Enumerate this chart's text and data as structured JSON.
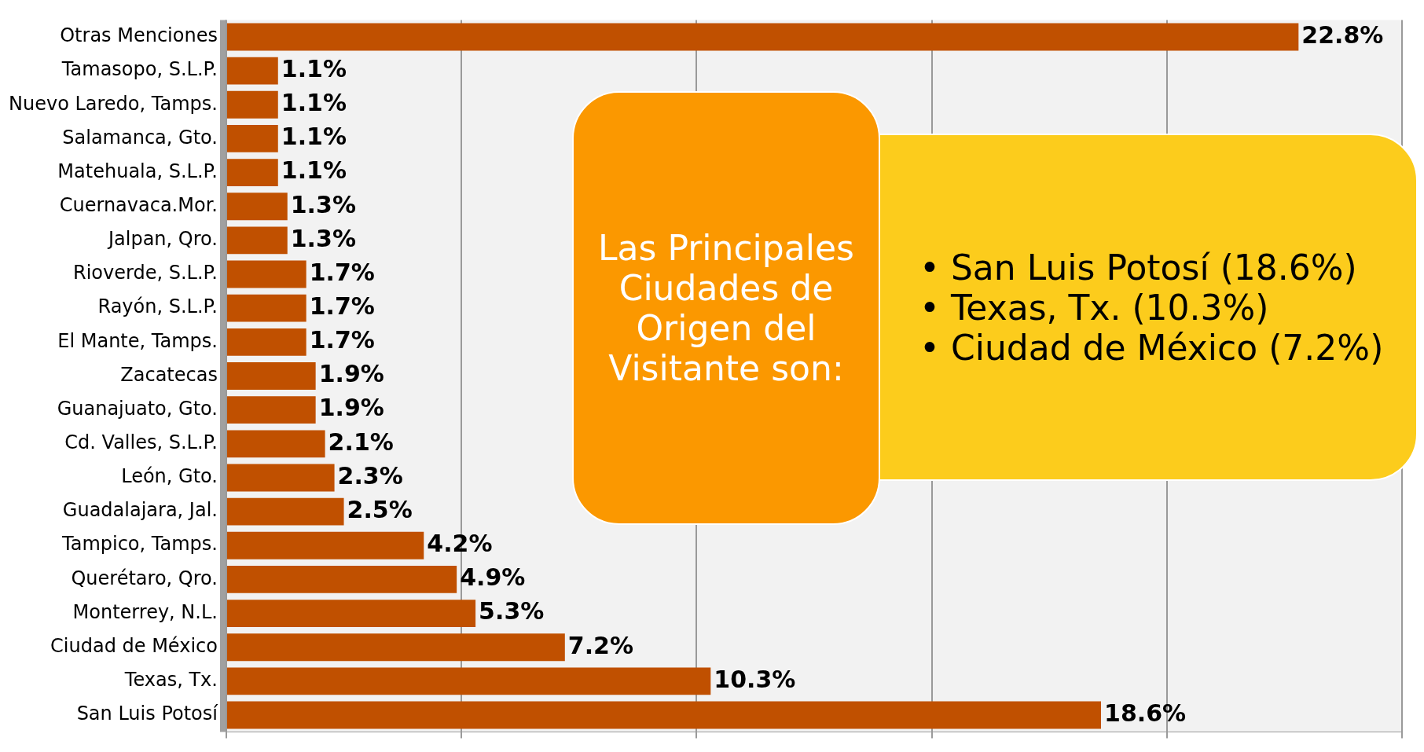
{
  "chart_data": {
    "type": "bar",
    "orientation": "horizontal",
    "categories": [
      "Otras Menciones",
      "Tamasopo, S.L.P.",
      "Nuevo Laredo, Tamps.",
      "Salamanca, Gto.",
      "Matehuala, S.L.P.",
      "Cuernavaca.Mor.",
      "Jalpan, Qro.",
      "Rioverde, S.L.P.",
      "Rayón, S.L.P.",
      "El Mante, Tamps.",
      "Zacatecas",
      "Guanajuato, Gto.",
      "Cd. Valles, S.L.P.",
      "León, Gto.",
      "Guadalajara, Jal.",
      "Tampico, Tamps.",
      "Querétaro, Qro.",
      "Monterrey, N.L.",
      "Ciudad de México",
      "Texas, Tx.",
      "San Luis Potosí"
    ],
    "values": [
      22.8,
      1.1,
      1.1,
      1.1,
      1.1,
      1.3,
      1.3,
      1.7,
      1.7,
      1.7,
      1.9,
      1.9,
      2.1,
      2.3,
      2.5,
      4.2,
      4.9,
      5.3,
      7.2,
      10.3,
      18.6
    ],
    "value_labels": [
      "22.8%",
      "1.1%",
      "1.1%",
      "1.1%",
      "1.1%",
      "1.3%",
      "1.3%",
      "1.7%",
      "1.7%",
      "1.7%",
      "1.9%",
      "1.9%",
      "2.1%",
      "2.3%",
      "2.5%",
      "4.2%",
      "4.9%",
      "5.3%",
      "7.2%",
      "10.3%",
      "18.6%"
    ],
    "color": "#c05000",
    "tick_labels": "y",
    "grid": "x",
    "annotations": [
      "Las Principales Ciudades de Origen del Visitante son:",
      "• San Luis Potosí (18.6%)",
      "• Texas, Tx. (10.3%)",
      "• Ciudad de México (7.2%)"
    ]
  }
}
